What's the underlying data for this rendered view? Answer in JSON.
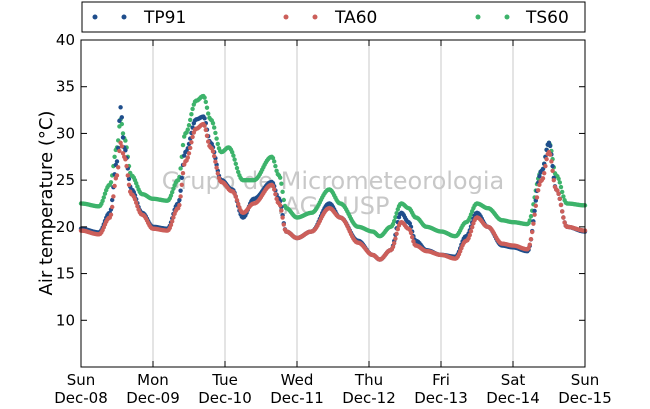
{
  "chart_data": {
    "type": "scatter",
    "ylabel": "Air temperature (°C)",
    "ylim": [
      5,
      40
    ],
    "yticks": [
      10,
      15,
      20,
      25,
      30,
      35,
      40
    ],
    "x_range_days": [
      0,
      7
    ],
    "xtick_labels": [
      [
        "Sun",
        "Dec-08"
      ],
      [
        "Mon",
        "Dec-09"
      ],
      [
        "Tue",
        "Dec-10"
      ],
      [
        "Wed",
        "Dec-11"
      ],
      [
        "Thu",
        "Dec-12"
      ],
      [
        "Fri",
        "Dec-13"
      ],
      [
        "Sat",
        "Dec-14"
      ],
      [
        "Sun",
        "Dec-15"
      ]
    ],
    "grid": "vertical",
    "legend_position": "top",
    "watermark": [
      "Grupo de Micrometeorologia",
      "IAG - USP"
    ],
    "series": [
      {
        "name": "TP91",
        "color": "#1f4e8c",
        "points": [
          [
            0.0,
            19.8
          ],
          [
            0.25,
            19.4
          ],
          [
            0.4,
            21.5
          ],
          [
            0.5,
            27.0
          ],
          [
            0.55,
            32.8
          ],
          [
            0.6,
            28.5
          ],
          [
            0.7,
            24.0
          ],
          [
            0.85,
            21.5
          ],
          [
            1.0,
            20.0
          ],
          [
            1.2,
            19.8
          ],
          [
            1.35,
            22.5
          ],
          [
            1.45,
            28.0
          ],
          [
            1.6,
            31.5
          ],
          [
            1.7,
            31.8
          ],
          [
            1.8,
            29.0
          ],
          [
            1.95,
            25.0
          ],
          [
            2.1,
            24.0
          ],
          [
            2.25,
            21.0
          ],
          [
            2.4,
            23.0
          ],
          [
            2.65,
            24.8
          ],
          [
            2.75,
            23.0
          ],
          [
            2.85,
            19.5
          ],
          [
            3.0,
            18.8
          ],
          [
            3.2,
            19.5
          ],
          [
            3.45,
            22.5
          ],
          [
            3.6,
            21.0
          ],
          [
            3.85,
            18.5
          ],
          [
            4.05,
            17.0
          ],
          [
            4.15,
            16.5
          ],
          [
            4.3,
            17.5
          ],
          [
            4.45,
            21.5
          ],
          [
            4.55,
            20.5
          ],
          [
            4.65,
            18.5
          ],
          [
            4.8,
            17.5
          ],
          [
            5.0,
            17.0
          ],
          [
            5.2,
            16.8
          ],
          [
            5.35,
            19.0
          ],
          [
            5.5,
            21.5
          ],
          [
            5.65,
            20.0
          ],
          [
            5.85,
            18.0
          ],
          [
            6.0,
            17.8
          ],
          [
            6.2,
            17.4
          ],
          [
            6.4,
            26.0
          ],
          [
            6.5,
            29.0
          ],
          [
            6.6,
            24.0
          ],
          [
            6.75,
            20.0
          ],
          [
            7.0,
            19.5
          ]
        ]
      },
      {
        "name": "TA60",
        "color": "#cc5f5a",
        "points": [
          [
            0.0,
            19.6
          ],
          [
            0.25,
            19.2
          ],
          [
            0.4,
            21.0
          ],
          [
            0.5,
            25.5
          ],
          [
            0.55,
            29.0
          ],
          [
            0.6,
            27.5
          ],
          [
            0.7,
            23.5
          ],
          [
            0.85,
            21.3
          ],
          [
            1.0,
            19.8
          ],
          [
            1.2,
            19.6
          ],
          [
            1.35,
            22.0
          ],
          [
            1.45,
            27.0
          ],
          [
            1.6,
            30.5
          ],
          [
            1.7,
            31.0
          ],
          [
            1.8,
            28.5
          ],
          [
            1.95,
            24.8
          ],
          [
            2.1,
            23.8
          ],
          [
            2.25,
            21.5
          ],
          [
            2.4,
            22.5
          ],
          [
            2.65,
            24.5
          ],
          [
            2.75,
            22.5
          ],
          [
            2.85,
            19.5
          ],
          [
            3.0,
            18.8
          ],
          [
            3.2,
            19.5
          ],
          [
            3.45,
            22.0
          ],
          [
            3.6,
            21.0
          ],
          [
            3.85,
            18.3
          ],
          [
            4.05,
            17.0
          ],
          [
            4.15,
            16.5
          ],
          [
            4.3,
            17.5
          ],
          [
            4.45,
            20.5
          ],
          [
            4.55,
            19.8
          ],
          [
            4.65,
            18.0
          ],
          [
            4.8,
            17.4
          ],
          [
            5.0,
            17.0
          ],
          [
            5.2,
            16.6
          ],
          [
            5.35,
            18.5
          ],
          [
            5.5,
            21.0
          ],
          [
            5.65,
            20.0
          ],
          [
            5.85,
            18.2
          ],
          [
            6.0,
            18.0
          ],
          [
            6.2,
            17.6
          ],
          [
            6.4,
            25.0
          ],
          [
            6.5,
            28.0
          ],
          [
            6.6,
            24.0
          ],
          [
            6.75,
            20.0
          ],
          [
            7.0,
            19.6
          ]
        ]
      },
      {
        "name": "TS60",
        "color": "#3db36b",
        "points": [
          [
            0.0,
            22.5
          ],
          [
            0.25,
            22.2
          ],
          [
            0.4,
            24.5
          ],
          [
            0.5,
            28.5
          ],
          [
            0.55,
            31.5
          ],
          [
            0.6,
            29.5
          ],
          [
            0.7,
            25.5
          ],
          [
            0.85,
            23.5
          ],
          [
            1.0,
            23.0
          ],
          [
            1.2,
            22.8
          ],
          [
            1.35,
            25.0
          ],
          [
            1.45,
            30.0
          ],
          [
            1.6,
            33.5
          ],
          [
            1.7,
            34.0
          ],
          [
            1.8,
            31.5
          ],
          [
            1.95,
            28.0
          ],
          [
            2.05,
            28.5
          ],
          [
            2.25,
            25.0
          ],
          [
            2.4,
            25.0
          ],
          [
            2.65,
            27.5
          ],
          [
            2.75,
            25.5
          ],
          [
            2.85,
            22.0
          ],
          [
            3.0,
            21.0
          ],
          [
            3.2,
            21.5
          ],
          [
            3.45,
            24.0
          ],
          [
            3.6,
            22.5
          ],
          [
            3.85,
            20.0
          ],
          [
            4.05,
            19.5
          ],
          [
            4.15,
            19.0
          ],
          [
            4.3,
            20.0
          ],
          [
            4.45,
            22.5
          ],
          [
            4.55,
            22.0
          ],
          [
            4.65,
            21.0
          ],
          [
            4.8,
            20.0
          ],
          [
            5.0,
            19.5
          ],
          [
            5.2,
            19.0
          ],
          [
            5.35,
            20.5
          ],
          [
            5.5,
            22.5
          ],
          [
            5.65,
            22.0
          ],
          [
            5.85,
            20.7
          ],
          [
            6.0,
            20.5
          ],
          [
            6.2,
            20.3
          ],
          [
            6.4,
            26.0
          ],
          [
            6.5,
            29.0
          ],
          [
            6.6,
            25.5
          ],
          [
            6.75,
            22.5
          ],
          [
            7.0,
            22.3
          ]
        ]
      }
    ]
  }
}
